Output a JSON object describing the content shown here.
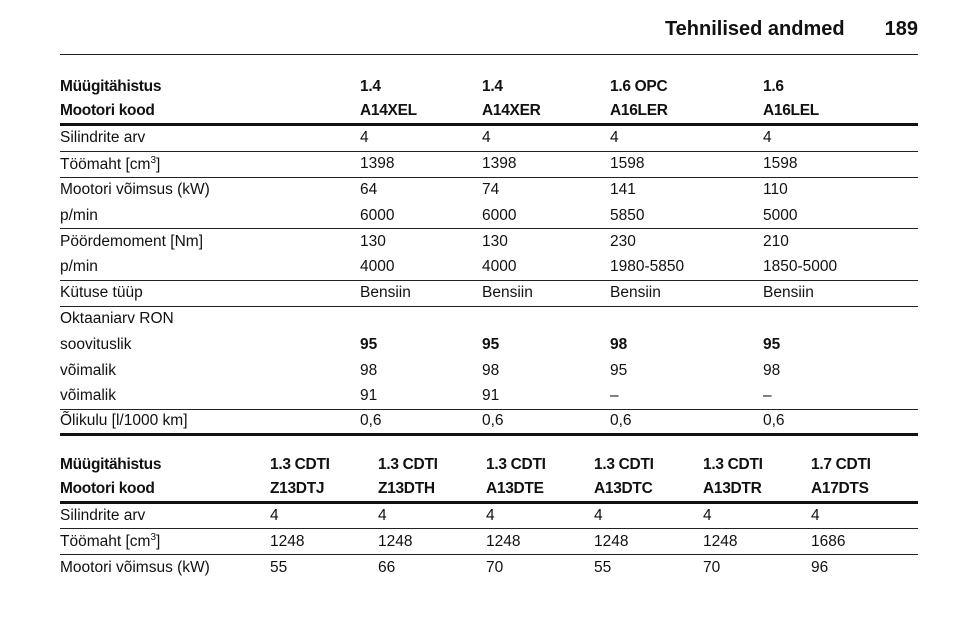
{
  "header": {
    "title": "Tehnilised andmed",
    "page": "189"
  },
  "tables": [
    {
      "head": [
        [
          "Müügitähistus",
          "1.4",
          "1.4",
          "1.6 OPC",
          "1.6"
        ],
        [
          "Mootori kood",
          "A14XEL",
          "A14XER",
          "A16LER",
          "A16LEL"
        ]
      ],
      "groups": [
        [
          {
            "label": "Silindrite arv",
            "values": [
              "4",
              "4",
              "4",
              "4"
            ]
          }
        ],
        [
          {
            "label": [
              "Töömaht [cm",
              "3",
              "]"
            ],
            "values": [
              "1398",
              "1398",
              "1598",
              "1598"
            ]
          }
        ],
        [
          {
            "label": "Mootori võimsus (kW)",
            "values": [
              "64",
              "74",
              "141",
              "110"
            ]
          },
          {
            "label": "p/min",
            "values": [
              "6000",
              "6000",
              "5850",
              "5000"
            ]
          }
        ],
        [
          {
            "label": "Pöördemoment [Nm]",
            "values": [
              "130",
              "130",
              "230",
              "210"
            ]
          },
          {
            "label": "p/min",
            "values": [
              "4000",
              "4000",
              "1980-5850",
              "1850-5000"
            ]
          }
        ],
        [
          {
            "label": "Kütuse tüüp",
            "values": [
              "Bensiin",
              "Bensiin",
              "Bensiin",
              "Bensiin"
            ]
          }
        ],
        [
          {
            "label": "Oktaaniarv RON",
            "values": []
          },
          {
            "label": "soovituslik",
            "values": [
              "95",
              "95",
              "98",
              "95"
            ],
            "bold": true
          },
          {
            "label": "võimalik",
            "values": [
              "98",
              "98",
              "95",
              "98"
            ]
          },
          {
            "label": "võimalik",
            "values": [
              "91",
              "91",
              "–",
              "–"
            ]
          }
        ],
        [
          {
            "label": "Õlikulu [l/1000 km]",
            "values": [
              "0,6",
              "0,6",
              "0,6",
              "0,6"
            ]
          }
        ]
      ]
    },
    {
      "head": [
        [
          "Müügitähistus",
          "1.3 CDTI",
          "1.3 CDTI",
          "1.3 CDTI",
          "1.3 CDTI",
          "1.3 CDTI",
          "1.7 CDTI"
        ],
        [
          "Mootori kood",
          "Z13DTJ",
          "Z13DTH",
          "A13DTE",
          "A13DTC",
          "A13DTR",
          "A17DTS"
        ]
      ],
      "groups": [
        [
          {
            "label": "Silindrite arv",
            "values": [
              "4",
              "4",
              "4",
              "4",
              "4",
              "4"
            ]
          }
        ],
        [
          {
            "label": [
              "Töömaht [cm",
              "3",
              "]"
            ],
            "values": [
              "1248",
              "1248",
              "1248",
              "1248",
              "1248",
              "1686"
            ]
          }
        ],
        [
          {
            "label": "Mootori võimsus (kW)",
            "values": [
              "55",
              "66",
              "70",
              "55",
              "70",
              "96"
            ]
          }
        ]
      ]
    }
  ]
}
